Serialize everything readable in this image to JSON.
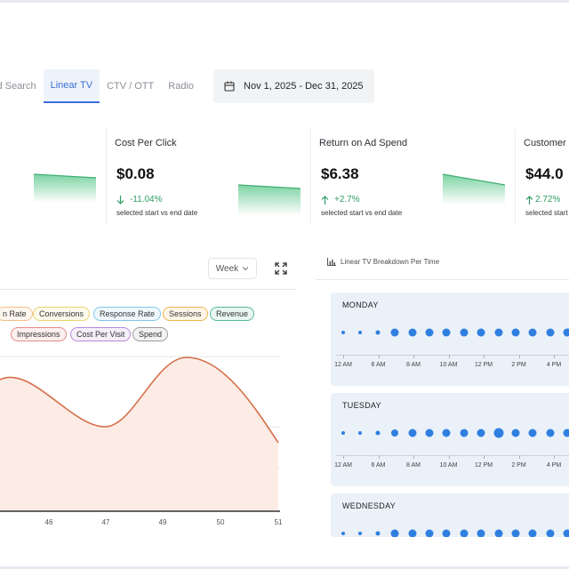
{
  "tabs": [
    {
      "label": "aid Search",
      "active": false
    },
    {
      "label": "Linear TV",
      "active": true
    },
    {
      "label": "CTV / OTT",
      "active": false
    },
    {
      "label": "Radio",
      "active": false
    }
  ],
  "date_range": {
    "label": "Nov 1, 2025 - Dec 31, 2025",
    "icon": "calendar-icon"
  },
  "kpis": [
    {
      "title": "",
      "value": ".",
      "delta": "",
      "caption": ""
    },
    {
      "title": "Cost Per Click",
      "value": "$0.08",
      "delta": "-11.04%",
      "delta_dir": "down",
      "caption": "selected start vs end date"
    },
    {
      "title": "Return on Ad Spend",
      "value": "$6.38",
      "delta": "+2.7%",
      "delta_dir": "up",
      "caption": "selected start vs end date"
    },
    {
      "title": "Customer",
      "value": "$44.0",
      "delta": "2.72%",
      "delta_dir": "up",
      "caption": "selected start"
    }
  ],
  "chart_panel": {
    "period_select": "Week",
    "period_chevron": "chevron-down-icon",
    "expand_icon": "expand-icon",
    "metric_pills": [
      {
        "label": "n Rate",
        "color": "#f2c08a"
      },
      {
        "label": "Conversions",
        "color": "#e6d66a"
      },
      {
        "label": "Response Rate",
        "color": "#7fc7e6"
      },
      {
        "label": "Sessions",
        "color": "#f0b450"
      },
      {
        "label": "Revenue",
        "color": "#5ab89a"
      },
      {
        "label": "Impressions",
        "color": "#e88a8a"
      },
      {
        "label": "Cost Per Visit",
        "color": "#b58ad6"
      },
      {
        "label": "Spend",
        "color": "#9a9a9a"
      }
    ]
  },
  "chart_data": {
    "type": "area",
    "x_ticks": [
      "46",
      "47",
      "49",
      "50",
      "51"
    ],
    "series": [
      {
        "color": "#d46f4a",
        "fill": "#fdece6"
      }
    ],
    "grid": true,
    "legend_placement": "top"
  },
  "right_panel": {
    "title": "Linear TV Breakdown Per Time",
    "title_icon": "bar-chart-icon",
    "days": [
      {
        "name": "MONDAY",
        "dots": [
          2,
          2,
          2.5,
          4.5,
          4.5,
          4.5,
          4.5,
          4.5,
          4.5,
          4.5,
          4.5,
          4.5,
          4.5,
          4.5
        ]
      },
      {
        "name": "TUESDAY",
        "dots": [
          2,
          2,
          2.5,
          4,
          4.5,
          4.5,
          4.5,
          4.5,
          4.5,
          5.5,
          4.5,
          4.5,
          4.5,
          4.5
        ]
      },
      {
        "name": "WEDNESDAY",
        "dots": [
          2,
          2,
          2.5,
          4.5,
          4.5,
          4.5,
          4.5,
          4.5,
          4.5,
          4.5,
          4.5,
          4.5,
          4.5,
          4.5
        ]
      }
    ],
    "time_ticks": [
      "12 AM",
      "6 AM",
      "8 AM",
      "10 AM",
      "12 PM",
      "2 PM",
      "4 PM"
    ]
  },
  "colors": {
    "accent": "#3b6fd6",
    "positive": "#2e9d63",
    "dot": "#2f7fe0",
    "day_card_bg": "#eaf1f8"
  }
}
